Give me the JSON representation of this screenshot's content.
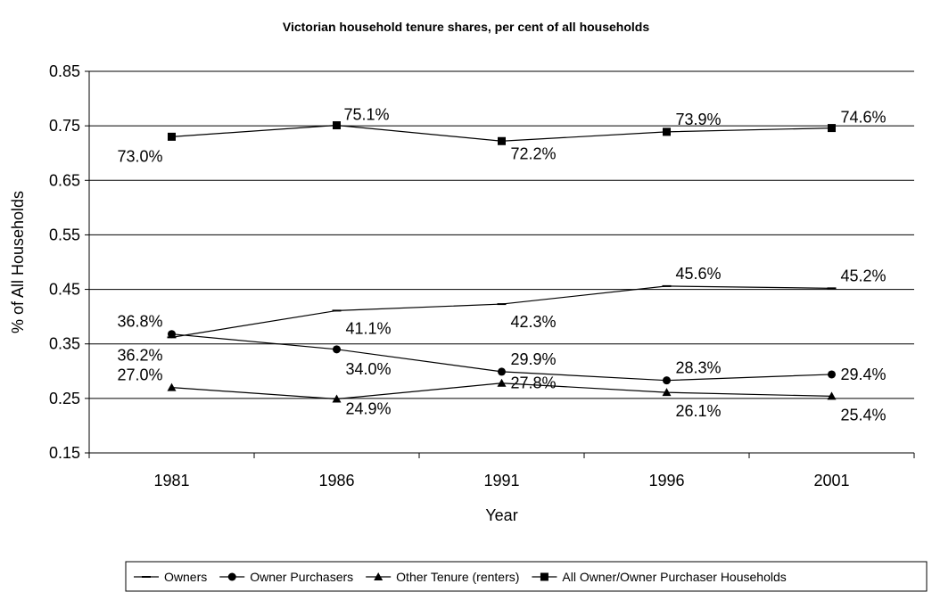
{
  "chart_data": {
    "type": "line",
    "title": "Victorian household tenure shares, per cent of all households",
    "xlabel": "Year",
    "ylabel": "% of All Households",
    "categories": [
      "1981",
      "1986",
      "1991",
      "1996",
      "2001"
    ],
    "ylim": [
      0.15,
      0.85
    ],
    "yticks": [
      "0.15",
      "0.25",
      "0.35",
      "0.45",
      "0.55",
      "0.65",
      "0.75",
      "0.85"
    ],
    "grid": "horizontal",
    "legend_position": "bottom",
    "series": [
      {
        "name": "Owners",
        "marker": "dash",
        "values": [
          0.362,
          0.411,
          0.423,
          0.456,
          0.452
        ],
        "labels": [
          "36.2%",
          "41.1%",
          "42.3%",
          "45.6%",
          "45.2%"
        ]
      },
      {
        "name": "Owner Purchasers",
        "marker": "circle",
        "values": [
          0.368,
          0.34,
          0.299,
          0.283,
          0.294
        ],
        "labels": [
          "36.8%",
          "34.0%",
          "29.9%",
          "28.3%",
          "29.4%"
        ]
      },
      {
        "name": "Other Tenure (renters)",
        "marker": "triangle",
        "values": [
          0.27,
          0.249,
          0.278,
          0.261,
          0.254
        ],
        "labels": [
          "27.0%",
          "24.9%",
          "27.8%",
          "26.1%",
          "25.4%"
        ]
      },
      {
        "name": "All Owner/Owner Purchaser Households",
        "marker": "square",
        "values": [
          0.73,
          0.751,
          0.722,
          0.739,
          0.746
        ],
        "labels": [
          "73.0%",
          "75.1%",
          "72.2%",
          "73.9%",
          "74.6%"
        ]
      }
    ]
  }
}
